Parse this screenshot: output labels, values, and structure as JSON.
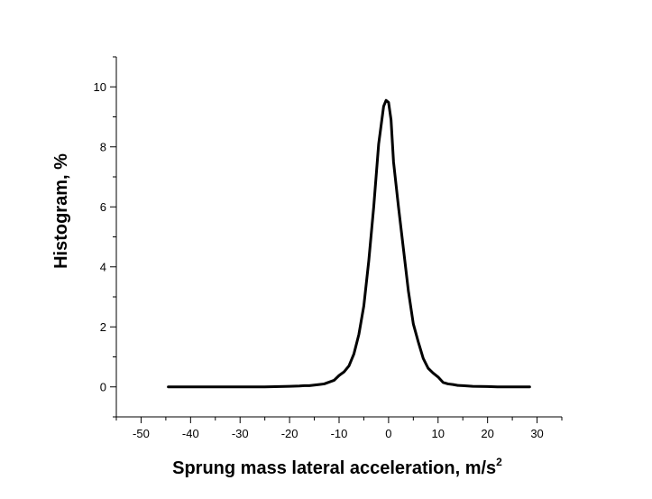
{
  "chart_data": {
    "type": "line",
    "title": "",
    "xlabel": "Sprung mass lateral acceleration, m/s",
    "xlabel_superscript": "2",
    "ylabel": "Histogram, %",
    "xlim": [
      -55,
      35
    ],
    "ylim": [
      -1,
      11
    ],
    "x_ticks": [
      -50,
      -40,
      -30,
      -20,
      -10,
      0,
      10,
      20,
      30
    ],
    "y_ticks": [
      0,
      2,
      4,
      6,
      8,
      10
    ],
    "grid": false,
    "line_color": "#000000",
    "series": [
      {
        "x": [
          -44.5,
          -40,
          -35,
          -30,
          -25,
          -22,
          -20,
          -18,
          -17,
          -16,
          -15,
          -14,
          -13,
          -12,
          -11,
          -10,
          -9,
          -8,
          -7,
          -6,
          -5,
          -4,
          -3,
          -2,
          -1,
          -0.5,
          0,
          0.5,
          1,
          2,
          3,
          4,
          5,
          6,
          7,
          8,
          9,
          10,
          11,
          12,
          13,
          14,
          15,
          17,
          20,
          22,
          25,
          28.5
        ],
        "y": [
          0,
          0,
          0,
          0,
          0,
          0.01,
          0.02,
          0.03,
          0.04,
          0.04,
          0.06,
          0.08,
          0.1,
          0.16,
          0.22,
          0.38,
          0.5,
          0.7,
          1.1,
          1.75,
          2.7,
          4.2,
          6.0,
          8.1,
          9.35,
          9.55,
          9.48,
          8.9,
          7.5,
          6.0,
          4.6,
          3.2,
          2.1,
          1.5,
          0.95,
          0.62,
          0.46,
          0.33,
          0.15,
          0.1,
          0.08,
          0.05,
          0.04,
          0.02,
          0.01,
          0.0,
          0.0,
          0.0
        ]
      }
    ]
  }
}
